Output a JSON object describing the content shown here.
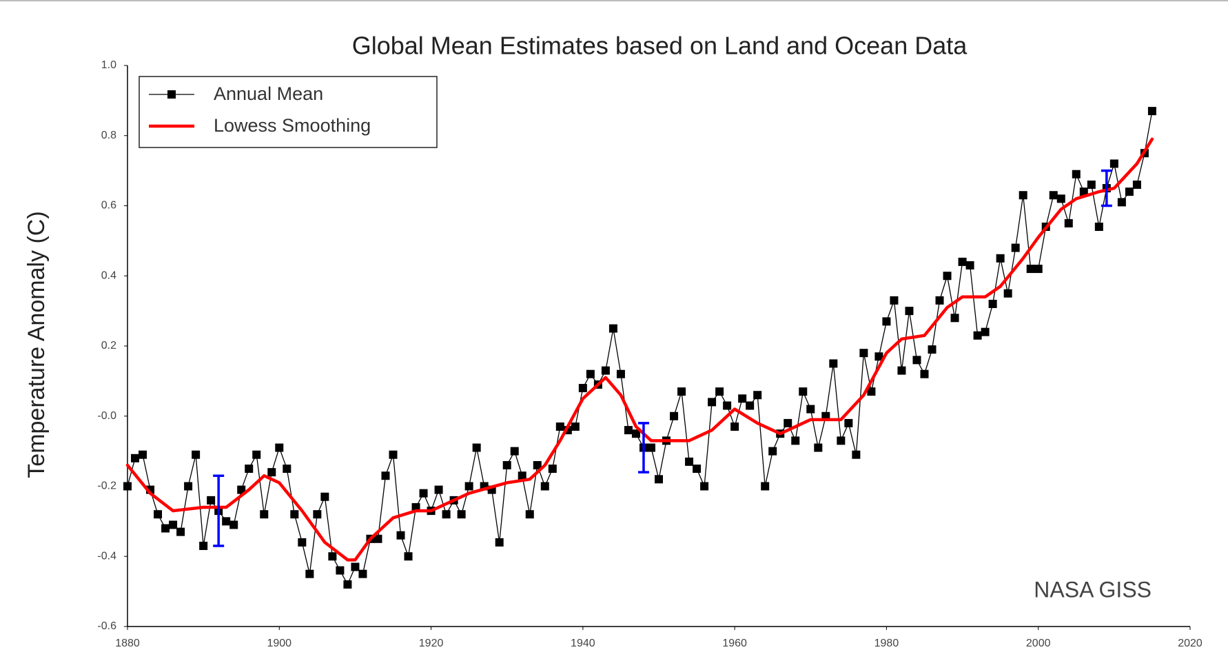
{
  "chart_data": {
    "type": "line",
    "title": "Global Mean Estimates based on Land and Ocean Data",
    "y_label": "Temperature Anomaly (C)",
    "annotation": "NASA GISS",
    "xlim": [
      1880,
      2020
    ],
    "xticks": [
      1880,
      1900,
      1920,
      1940,
      1960,
      1980,
      2000,
      2020
    ],
    "ylim": [
      -0.6,
      1.0
    ],
    "yticks": [
      {
        "value": 1,
        "label": "1.0"
      },
      0.8,
      0.6,
      0.4,
      0.2,
      {
        "value": 0,
        "label": "-0.0"
      },
      -0.2,
      -0.4,
      -0.6
    ],
    "legend": "upper left",
    "series": [
      {
        "name": "Annual Mean",
        "color": "#000000",
        "marker": "square",
        "x": [
          1880,
          1881,
          1882,
          1883,
          1884,
          1885,
          1886,
          1887,
          1888,
          1889,
          1890,
          1891,
          1892,
          1893,
          1894,
          1895,
          1896,
          1897,
          1898,
          1899,
          1900,
          1901,
          1902,
          1903,
          1904,
          1905,
          1906,
          1907,
          1908,
          1909,
          1910,
          1911,
          1912,
          1913,
          1914,
          1915,
          1916,
          1917,
          1918,
          1919,
          1920,
          1921,
          1922,
          1923,
          1924,
          1925,
          1926,
          1927,
          1928,
          1929,
          1930,
          1931,
          1932,
          1933,
          1934,
          1935,
          1936,
          1937,
          1938,
          1939,
          1940,
          1941,
          1942,
          1943,
          1944,
          1945,
          1946,
          1947,
          1948,
          1949,
          1950,
          1951,
          1952,
          1953,
          1954,
          1955,
          1956,
          1957,
          1958,
          1959,
          1960,
          1961,
          1962,
          1963,
          1964,
          1965,
          1966,
          1967,
          1968,
          1969,
          1970,
          1971,
          1972,
          1973,
          1974,
          1975,
          1976,
          1977,
          1978,
          1979,
          1980,
          1981,
          1982,
          1983,
          1984,
          1985,
          1986,
          1987,
          1988,
          1989,
          1990,
          1991,
          1992,
          1993,
          1994,
          1995,
          1996,
          1997,
          1998,
          1999,
          2000,
          2001,
          2002,
          2003,
          2004,
          2005,
          2006,
          2007,
          2008,
          2009,
          2010,
          2011,
          2012,
          2013,
          2014,
          2015
        ],
        "values": [
          -0.2,
          -0.12,
          -0.11,
          -0.21,
          -0.28,
          -0.32,
          -0.31,
          -0.33,
          -0.2,
          -0.11,
          -0.37,
          -0.24,
          -0.27,
          -0.3,
          -0.31,
          -0.21,
          -0.15,
          -0.11,
          -0.28,
          -0.16,
          -0.09,
          -0.15,
          -0.28,
          -0.36,
          -0.45,
          -0.28,
          -0.23,
          -0.4,
          -0.44,
          -0.48,
          -0.43,
          -0.45,
          -0.35,
          -0.35,
          -0.17,
          -0.11,
          -0.34,
          -0.4,
          -0.26,
          -0.22,
          -0.27,
          -0.21,
          -0.28,
          -0.24,
          -0.28,
          -0.2,
          -0.09,
          -0.2,
          -0.21,
          -0.36,
          -0.14,
          -0.1,
          -0.17,
          -0.28,
          -0.14,
          -0.2,
          -0.15,
          -0.03,
          -0.04,
          -0.03,
          0.08,
          0.12,
          0.09,
          0.13,
          0.25,
          0.12,
          -0.04,
          -0.05,
          -0.09,
          -0.09,
          -0.18,
          -0.07,
          0.0,
          0.07,
          -0.13,
          -0.15,
          -0.2,
          0.04,
          0.07,
          0.03,
          -0.03,
          0.05,
          0.03,
          0.06,
          -0.2,
          -0.1,
          -0.05,
          -0.02,
          -0.07,
          0.07,
          0.02,
          -0.09,
          0.0,
          0.15,
          -0.07,
          -0.02,
          -0.11,
          0.18,
          0.07,
          0.17,
          0.27,
          0.33,
          0.13,
          0.3,
          0.16,
          0.12,
          0.19,
          0.33,
          0.4,
          0.28,
          0.44,
          0.43,
          0.23,
          0.24,
          0.32,
          0.45,
          0.35,
          0.48,
          0.63,
          0.42,
          0.42,
          0.54,
          0.63,
          0.62,
          0.55,
          0.69,
          0.64,
          0.66,
          0.54,
          0.65,
          0.72,
          0.61,
          0.64,
          0.66,
          0.75,
          0.87
        ]
      },
      {
        "name": "Lowess Smoothing",
        "color": "#ff0000",
        "x": [
          1880,
          1883,
          1886,
          1890,
          1893,
          1896,
          1898,
          1900,
          1903,
          1906,
          1909,
          1910,
          1912,
          1915,
          1918,
          1920,
          1925,
          1930,
          1933,
          1935,
          1937,
          1940,
          1943,
          1945,
          1947,
          1949,
          1952,
          1954,
          1957,
          1960,
          1963,
          1966,
          1970,
          1974,
          1977,
          1980,
          1982,
          1985,
          1988,
          1990,
          1993,
          1995,
          1998,
          2000,
          2003,
          2005,
          2008,
          2010,
          2013,
          2015
        ],
        "values": [
          -0.14,
          -0.22,
          -0.27,
          -0.26,
          -0.26,
          -0.21,
          -0.17,
          -0.19,
          -0.27,
          -0.36,
          -0.41,
          -0.41,
          -0.35,
          -0.29,
          -0.27,
          -0.27,
          -0.22,
          -0.19,
          -0.18,
          -0.14,
          -0.07,
          0.05,
          0.11,
          0.06,
          -0.03,
          -0.07,
          -0.07,
          -0.07,
          -0.04,
          0.02,
          -0.02,
          -0.05,
          -0.01,
          -0.01,
          0.06,
          0.18,
          0.22,
          0.23,
          0.31,
          0.34,
          0.34,
          0.37,
          0.45,
          0.51,
          0.59,
          0.62,
          0.64,
          0.65,
          0.72,
          0.79
        ]
      }
    ],
    "error_bars": {
      "color": "#0000ff",
      "x": [
        1892,
        1948,
        2009
      ],
      "y": [
        -0.27,
        -0.09,
        0.65
      ],
      "error": [
        0.1,
        0.07,
        0.05
      ]
    }
  }
}
